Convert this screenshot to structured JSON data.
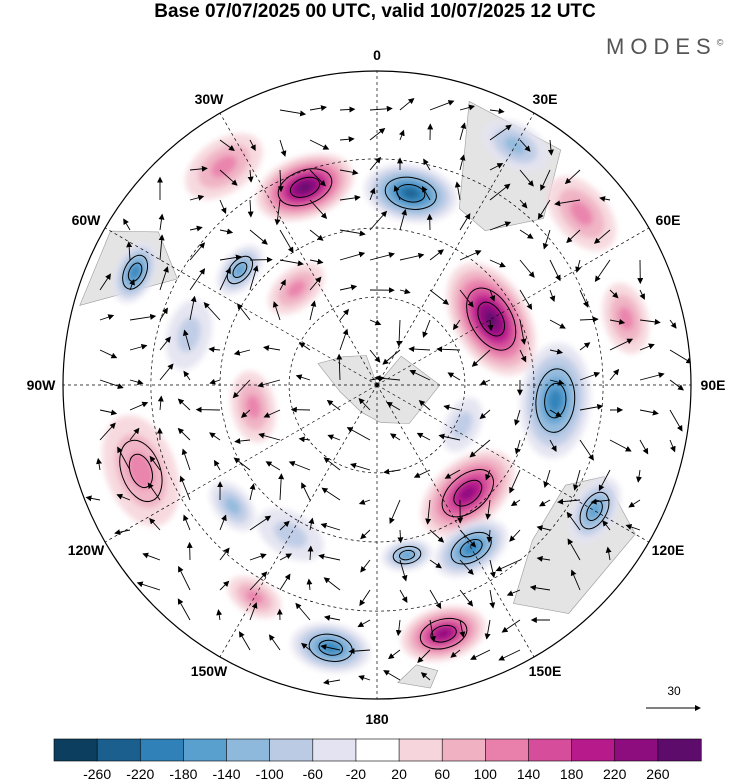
{
  "title": "Base 07/07/2025 00 UTC, valid 10/07/2025 12 UTC",
  "brand": {
    "name": "MODES",
    "mark": "©"
  },
  "meridian_labels": [
    {
      "text": "0",
      "lon": 0
    },
    {
      "text": "30E",
      "lon": 30
    },
    {
      "text": "60E",
      "lon": 60
    },
    {
      "text": "90E",
      "lon": 90
    },
    {
      "text": "120E",
      "lon": 120
    },
    {
      "text": "150E",
      "lon": 150
    },
    {
      "text": "180",
      "lon": 180
    },
    {
      "text": "150W",
      "lon": -150
    },
    {
      "text": "120W",
      "lon": -120
    },
    {
      "text": "90W",
      "lon": -90
    },
    {
      "text": "60W",
      "lon": -60
    },
    {
      "text": "30W",
      "lon": -30
    }
  ],
  "reference_vector": {
    "label": "30",
    "value": 30
  },
  "colorbar": {
    "tick_labels": [
      "-260",
      "-220",
      "-180",
      "-140",
      "-100",
      "-60",
      "-20",
      "20",
      "60",
      "100",
      "140",
      "180",
      "220",
      "260"
    ],
    "colors": [
      "#0c3f5f",
      "#1a5f8e",
      "#2f81b8",
      "#5aa0cf",
      "#8fb9dc",
      "#bccbe4",
      "#e3e3f1",
      "#ffffff",
      "#f6d6dc",
      "#f0b1c3",
      "#e980ab",
      "#d64d9b",
      "#b61a8b",
      "#8d0d7e",
      "#5e0c6c"
    ]
  },
  "anomalies": [
    {
      "lon": -20,
      "r": 0.67,
      "v": 260,
      "size": 0.14
    },
    {
      "lon": 10,
      "r": 0.62,
      "v": -200,
      "size": 0.13
    },
    {
      "lon": 60,
      "r": 0.42,
      "v": 240,
      "size": 0.17
    },
    {
      "lon": 95,
      "r": 0.57,
      "v": -170,
      "size": 0.16
    },
    {
      "lon": 140,
      "r": 0.45,
      "v": 220,
      "size": 0.15
    },
    {
      "lon": 120,
      "r": 0.8,
      "v": -140,
      "size": 0.1
    },
    {
      "lon": 150,
      "r": 0.6,
      "v": -170,
      "size": 0.11
    },
    {
      "lon": 165,
      "r": 0.82,
      "v": 200,
      "size": 0.12
    },
    {
      "lon": -170,
      "r": 0.85,
      "v": -180,
      "size": 0.11
    },
    {
      "lon": -65,
      "r": 0.85,
      "v": -170,
      "size": 0.09
    },
    {
      "lon": -50,
      "r": 0.57,
      "v": -120,
      "size": 0.08
    },
    {
      "lon": -40,
      "r": 0.4,
      "v": 90,
      "size": 0.09
    },
    {
      "lon": -110,
      "r": 0.8,
      "v": 100,
      "size": 0.16
    },
    {
      "lon": 30,
      "r": 0.88,
      "v": -80,
      "size": 0.1
    },
    {
      "lon": 50,
      "r": 0.85,
      "v": 80,
      "size": 0.12
    },
    {
      "lon": -150,
      "r": 0.55,
      "v": -60,
      "size": 0.1
    },
    {
      "lon": -130,
      "r": 0.6,
      "v": -80,
      "size": 0.08
    },
    {
      "lon": 170,
      "r": 0.55,
      "v": -110,
      "size": 0.07
    },
    {
      "lon": -100,
      "r": 0.4,
      "v": 70,
      "size": 0.1
    },
    {
      "lon": 75,
      "r": 0.82,
      "v": 80,
      "size": 0.1
    },
    {
      "lon": -35,
      "r": 0.85,
      "v": 70,
      "size": 0.12
    },
    {
      "lon": -75,
      "r": 0.62,
      "v": -60,
      "size": 0.1
    },
    {
      "lon": 115,
      "r": 0.3,
      "v": -50,
      "size": 0.08
    },
    {
      "lon": -150,
      "r": 0.78,
      "v": 70,
      "size": 0.08
    }
  ]
}
